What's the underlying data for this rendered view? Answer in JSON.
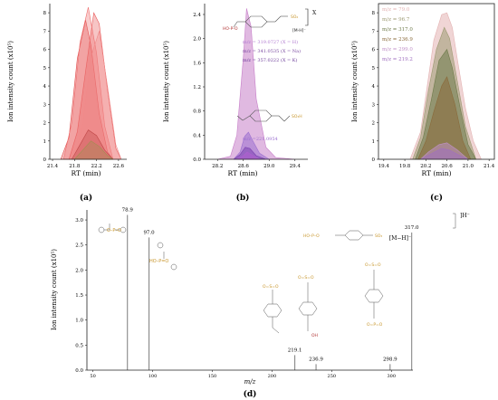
{
  "chart_data": [
    {
      "panel": "(a)",
      "type": "area",
      "xlabel": "RT (min)",
      "ylabel": "Ion intensity count (x10⁵)",
      "x_ticks": [
        "21.4",
        "21.8",
        "22.2",
        "22.6"
      ],
      "y_ticks": [
        "0",
        "1",
        "2",
        "3",
        "4",
        "5",
        "6",
        "7",
        "8"
      ],
      "xlim": [
        21.35,
        22.75
      ],
      "ylim": [
        0,
        8.4
      ],
      "series": [
        {
          "color": "#e04848",
          "values": [
            [
              21.55,
              0
            ],
            [
              21.7,
              1.2
            ],
            [
              21.85,
              5.5
            ],
            [
              22.0,
              7.6
            ],
            [
              22.1,
              6.2
            ],
            [
              22.25,
              2.5
            ],
            [
              22.4,
              0.4
            ],
            [
              22.5,
              0
            ]
          ]
        },
        {
          "color": "#e85a5a",
          "values": [
            [
              21.7,
              0
            ],
            [
              21.85,
              1.5
            ],
            [
              22.0,
              4.8
            ],
            [
              22.15,
              8.0
            ],
            [
              22.25,
              7.4
            ],
            [
              22.4,
              3.8
            ],
            [
              22.55,
              0.6
            ],
            [
              22.65,
              0
            ]
          ]
        },
        {
          "color": "#ee7070",
          "values": [
            [
              21.6,
              0
            ],
            [
              21.75,
              2.0
            ],
            [
              21.9,
              6.4
            ],
            [
              22.05,
              8.3
            ],
            [
              22.2,
              5.8
            ],
            [
              22.35,
              1.8
            ],
            [
              22.5,
              0
            ]
          ]
        },
        {
          "color": "#f08a8a",
          "values": [
            [
              21.8,
              0
            ],
            [
              21.95,
              2.0
            ],
            [
              22.1,
              5.6
            ],
            [
              22.25,
              7.0
            ],
            [
              22.4,
              4.0
            ],
            [
              22.55,
              0.8
            ],
            [
              22.65,
              0
            ]
          ]
        },
        {
          "color": "#c04848",
          "values": [
            [
              21.75,
              0
            ],
            [
              21.9,
              0.8
            ],
            [
              22.05,
              1.6
            ],
            [
              22.2,
              1.3
            ],
            [
              22.35,
              0.5
            ],
            [
              22.5,
              0
            ]
          ]
        },
        {
          "color": "#a09050",
          "values": [
            [
              21.8,
              0
            ],
            [
              21.95,
              0.5
            ],
            [
              22.1,
              1.0
            ],
            [
              22.25,
              0.7
            ],
            [
              22.4,
              0.2
            ],
            [
              22.5,
              0
            ]
          ]
        }
      ]
    },
    {
      "panel": "(b)",
      "type": "area",
      "xlabel": "RT (min)",
      "ylabel": "Ion intensity count (x10⁵)",
      "x_ticks": [
        "28.2",
        "28.6",
        "29.0",
        "29.4"
      ],
      "y_ticks": [
        "0.0",
        "0.4",
        "0.8",
        "1.2",
        "1.6",
        "2.0",
        "2.4"
      ],
      "xlim": [
        28.0,
        29.6
      ],
      "ylim": [
        0,
        2.55
      ],
      "series": [
        {
          "name": "m/z = 319.0727 (X = H)",
          "color": "#c77fc9",
          "values": [
            [
              28.2,
              0
            ],
            [
              28.4,
              0.05
            ],
            [
              28.5,
              0.4
            ],
            [
              28.6,
              1.7
            ],
            [
              28.65,
              2.5
            ],
            [
              28.72,
              2.2
            ],
            [
              28.8,
              1.0
            ],
            [
              28.95,
              0.2
            ],
            [
              29.1,
              0.03
            ],
            [
              29.4,
              0
            ]
          ]
        },
        {
          "name": "m/z = 341.0535 (X = Na)",
          "color": "#9b6fd0",
          "values": [
            [
              28.45,
              0
            ],
            [
              28.55,
              0.12
            ],
            [
              28.62,
              0.38
            ],
            [
              28.68,
              0.45
            ],
            [
              28.75,
              0.3
            ],
            [
              28.85,
              0.1
            ],
            [
              29.0,
              0
            ]
          ]
        },
        {
          "name": "m/z = 357.0222 (X = K)",
          "color": "#7a3fb0",
          "values": [
            [
              28.45,
              0
            ],
            [
              28.55,
              0.08
            ],
            [
              28.63,
              0.2
            ],
            [
              28.7,
              0.18
            ],
            [
              28.8,
              0.06
            ],
            [
              28.95,
              0
            ]
          ]
        },
        {
          "name": "m/z =221.0954",
          "color": "#b05fd0",
          "values": [
            [
              28.5,
              0
            ],
            [
              28.6,
              0.06
            ],
            [
              28.66,
              0.12
            ],
            [
              28.72,
              0.08
            ],
            [
              28.85,
              0
            ]
          ]
        }
      ],
      "legend": [
        "m/z = 319.0727 (X = H)",
        "m/z = 341.0535 (X = Na)",
        "m/z = 357.0222 (X = K)"
      ],
      "annotation": "m/z =221.0954",
      "structure_labels": [
        "[M-H]⁻",
        "X"
      ]
    },
    {
      "panel": "(c)",
      "type": "area",
      "xlabel": "RT (min)",
      "ylabel": "Ion intensity count (x10⁵)",
      "x_ticks": [
        "19.4",
        "19.8",
        "20.2",
        "20.6",
        "21.0",
        "21.4"
      ],
      "y_ticks": [
        "0",
        "1",
        "2",
        "3",
        "4",
        "5",
        "6",
        "7",
        "8"
      ],
      "xlim": [
        19.3,
        21.5
      ],
      "ylim": [
        0,
        8.4
      ],
      "series": [
        {
          "name": "m/z = 79.0",
          "color": "#e3b2b2",
          "values": [
            [
              19.9,
              0
            ],
            [
              20.1,
              1.5
            ],
            [
              20.25,
              4.5
            ],
            [
              20.35,
              6.5
            ],
            [
              20.5,
              7.9
            ],
            [
              20.6,
              8.0
            ],
            [
              20.7,
              7.2
            ],
            [
              20.8,
              5.4
            ],
            [
              20.95,
              2.8
            ],
            [
              21.1,
              1.0
            ],
            [
              21.25,
              0
            ]
          ]
        },
        {
          "name": "m/z = 96.7",
          "color": "#9c9a72",
          "values": [
            [
              19.95,
              0
            ],
            [
              20.1,
              1.2
            ],
            [
              20.25,
              3.8
            ],
            [
              20.4,
              6.0
            ],
            [
              20.55,
              7.2
            ],
            [
              20.65,
              6.6
            ],
            [
              20.8,
              4.2
            ],
            [
              20.95,
              1.8
            ],
            [
              21.15,
              0
            ]
          ]
        },
        {
          "name": "m/z = 317.0",
          "color": "#6e7a4a",
          "values": [
            [
              20.0,
              0
            ],
            [
              20.15,
              1.2
            ],
            [
              20.3,
              3.2
            ],
            [
              20.45,
              5.4
            ],
            [
              20.6,
              6.0
            ],
            [
              20.7,
              5.0
            ],
            [
              20.85,
              2.8
            ],
            [
              21.0,
              0.8
            ],
            [
              21.15,
              0
            ]
          ]
        },
        {
          "name": "m/z = 236.9",
          "color": "#8a6a3a",
          "values": [
            [
              20.05,
              0
            ],
            [
              20.2,
              1.0
            ],
            [
              20.35,
              2.6
            ],
            [
              20.5,
              4.0
            ],
            [
              20.6,
              4.5
            ],
            [
              20.75,
              3.0
            ],
            [
              20.9,
              1.0
            ],
            [
              21.05,
              0
            ]
          ]
        },
        {
          "name": "m/z = 299.0",
          "color": "#c090c8",
          "values": [
            [
              20.1,
              0
            ],
            [
              20.25,
              0.4
            ],
            [
              20.45,
              0.8
            ],
            [
              20.6,
              0.9
            ],
            [
              20.8,
              0.5
            ],
            [
              21.0,
              0
            ]
          ]
        },
        {
          "name": "m/z = 219.2",
          "color": "#a070c0",
          "values": [
            [
              20.1,
              0
            ],
            [
              20.3,
              0.3
            ],
            [
              20.5,
              0.6
            ],
            [
              20.65,
              0.5
            ],
            [
              20.85,
              0.2
            ],
            [
              21.0,
              0
            ]
          ]
        }
      ],
      "legend": [
        "m/z = 79.0",
        "m/z = 96.7",
        "m/z = 317.0",
        "m/z = 236.9",
        "m/z = 299.0",
        "m/z = 219.2"
      ]
    },
    {
      "panel": "(d)",
      "type": "bar",
      "xlabel": "m/z",
      "ylabel": "Ion intensity count (x10⁵)",
      "x_ticks": [
        "50",
        "100",
        "150",
        "200",
        "250",
        "300"
      ],
      "y_ticks": [
        "0.0",
        "0.5",
        "1.0",
        "1.5",
        "2.0",
        "2.5",
        "3.0"
      ],
      "xlim": [
        45,
        318
      ],
      "ylim": [
        0,
        3.2
      ],
      "peaks": [
        {
          "mz": 78.9,
          "intensity": 3.1,
          "label": "78.9"
        },
        {
          "mz": 97.0,
          "intensity": 2.65,
          "label": "97.0"
        },
        {
          "mz": 219.1,
          "intensity": 0.3,
          "label": "219.1"
        },
        {
          "mz": 236.9,
          "intensity": 0.12,
          "label": "236.9"
        },
        {
          "mz": 298.9,
          "intensity": 0.12,
          "label": "298.9"
        },
        {
          "mz": 317.0,
          "intensity": 2.75,
          "label": "317.0"
        }
      ],
      "peak_label_317": "[M−H]⁻",
      "structure_label": "]H⁻"
    }
  ],
  "panel_labels": [
    "(a)",
    "(b)",
    "(c)",
    "(d)"
  ],
  "colors": {
    "axis": "#222222",
    "mol_line": "#444444",
    "sulfo": "#c8962c",
    "phospho": "#c8962c",
    "nitrogen": "#2f4fa0",
    "oxygen": "#b03030",
    "legend_text": "#7a4aa0"
  }
}
